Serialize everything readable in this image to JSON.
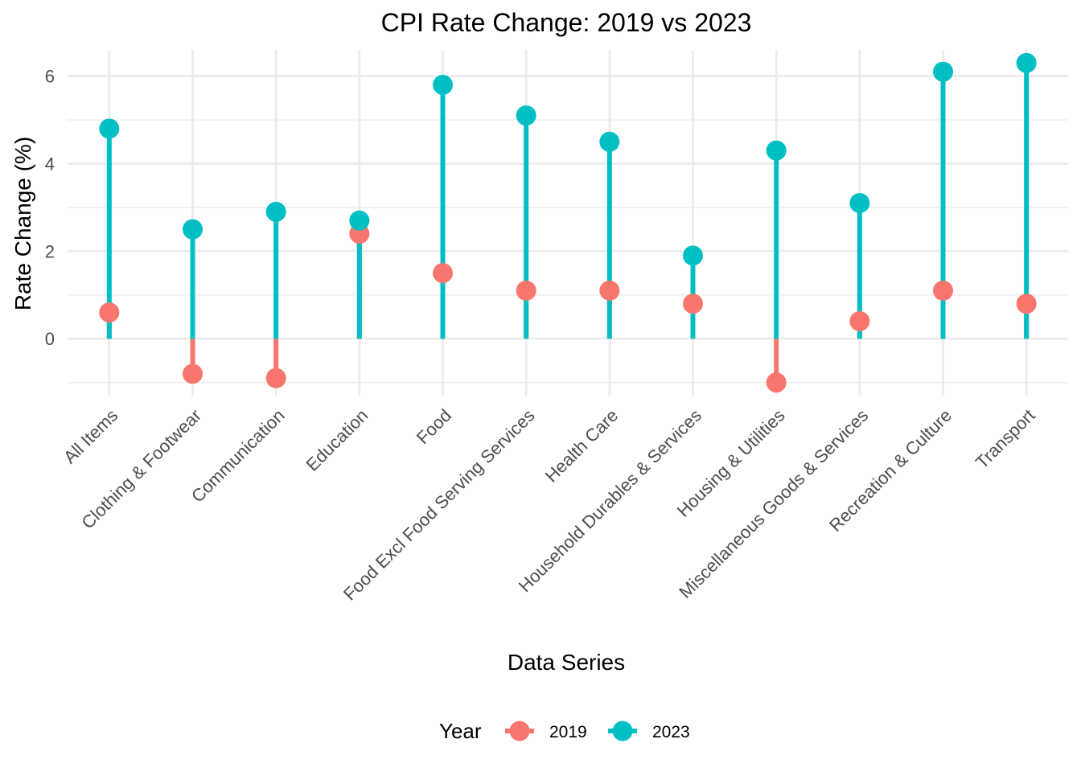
{
  "chart_data": {
    "type": "lollipop",
    "title": "CPI Rate Change: 2019 vs 2023",
    "xlabel": "Data Series",
    "ylabel": "Rate Change (%)",
    "ylim": [
      -1.3,
      6.6
    ],
    "yticks": [
      0,
      2,
      4,
      6
    ],
    "grid": true,
    "legend": {
      "title": "Year",
      "position": "bottom"
    },
    "categories": [
      "All Items",
      "Clothing & Footwear",
      "Communication",
      "Education",
      "Food",
      "Food Excl Food Serving Services",
      "Health Care",
      "Household Durables & Services",
      "Housing & Utilities",
      "Miscellaneous Goods & Services",
      "Recreation & Culture",
      "Transport"
    ],
    "series": [
      {
        "name": "2019",
        "color": "#F8766D",
        "values": [
          0.6,
          -0.8,
          -0.9,
          2.4,
          1.5,
          1.1,
          1.1,
          0.8,
          -1.0,
          0.4,
          1.1,
          0.8
        ]
      },
      {
        "name": "2023",
        "color": "#00BFC4",
        "values": [
          4.8,
          2.5,
          2.9,
          2.7,
          5.8,
          5.1,
          4.5,
          1.9,
          4.3,
          3.1,
          6.1,
          6.3
        ]
      }
    ]
  }
}
